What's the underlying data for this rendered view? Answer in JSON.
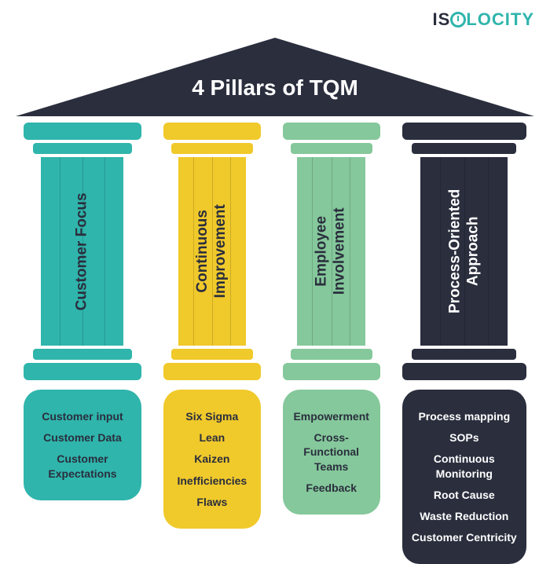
{
  "logo": {
    "part1": "IS",
    "part2": "LOCITY"
  },
  "title": "4 Pillars of TQM",
  "colors": {
    "roof": "#2a2e3d",
    "teal": "#2fb5ac",
    "yellow": "#f0c92b",
    "green": "#85c89b",
    "dark": "#2a2e3d"
  },
  "pillars": [
    {
      "label": "Customer Focus",
      "color": "#2fb5ac",
      "textLight": false,
      "baseTextLight": false,
      "items": [
        "Customer input",
        "Customer Data",
        "Customer Expectations"
      ]
    },
    {
      "label": "Continuous\nImprovement",
      "color": "#f0c92b",
      "textLight": false,
      "baseTextLight": false,
      "items": [
        "Six Sigma",
        "Lean",
        "Kaizen",
        "Inefficiencies",
        "Flaws"
      ]
    },
    {
      "label": "Employee\nInvolvement",
      "color": "#85c89b",
      "textLight": false,
      "baseTextLight": false,
      "items": [
        "Empowerment",
        "Cross-Functional Teams",
        "Feedback"
      ]
    },
    {
      "label": "Process-Oriented\nApproach",
      "color": "#2a2e3d",
      "textLight": true,
      "baseTextLight": true,
      "items": [
        "Process mapping",
        "SOPs",
        "Continuous Monitoring",
        "Root Cause",
        "Waste Reduction",
        "Customer Centricity"
      ]
    }
  ]
}
